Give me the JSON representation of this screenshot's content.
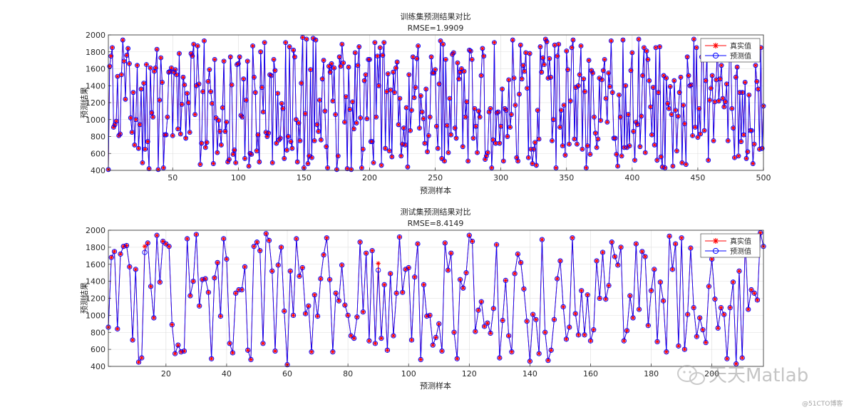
{
  "chart_data": [
    {
      "type": "line",
      "title": "训练集预测结果对比",
      "subtitle": "RMSE=1.9909",
      "xlabel": "预测样本",
      "ylabel": "预测结果",
      "xlim": [
        1,
        500
      ],
      "ylim": [
        400,
        2000
      ],
      "xticks": [
        50,
        100,
        150,
        200,
        250,
        300,
        350,
        400,
        450,
        500
      ],
      "yticks": [
        400,
        600,
        800,
        1000,
        1200,
        1400,
        1600,
        1800,
        2000
      ],
      "grid": true,
      "legend_position": "top-right",
      "series": [
        {
          "name": "真实值",
          "color": "#ff0000",
          "marker": "star"
        },
        {
          "name": "预测值",
          "color": "#0000ff",
          "marker": "circle"
        }
      ],
      "n_points": 500,
      "seed": 1979,
      "mismatch": []
    },
    {
      "type": "line",
      "title": "测试集预测结果对比",
      "subtitle": "RMSE=8.4149",
      "xlabel": "预测样本",
      "ylabel": "预测结果",
      "xlim": [
        1,
        217
      ],
      "ylim": [
        400,
        2000
      ],
      "xticks": [
        20,
        40,
        60,
        80,
        100,
        120,
        140,
        160,
        180,
        200
      ],
      "yticks": [
        400,
        600,
        800,
        1000,
        1200,
        1400,
        1600,
        1800,
        2000
      ],
      "grid": true,
      "legend_position": "top-right",
      "series": [
        {
          "name": "真实值",
          "color": "#ff0000",
          "marker": "star"
        },
        {
          "name": "预测值",
          "color": "#0000ff",
          "marker": "circle"
        }
      ],
      "n_points": 217,
      "seed": 2718,
      "mismatch": [
        [
          13,
          1810,
          1740
        ],
        [
          90,
          1610,
          1530
        ]
      ]
    }
  ],
  "watermark": {
    "brand": "天天Matlab",
    "site": "@51CTO博客"
  }
}
